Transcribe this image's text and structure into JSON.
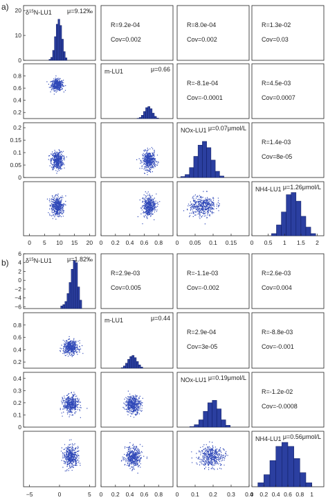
{
  "colors": {
    "hist_fill": "#2b3fa0",
    "hist_stroke": "#0d1a5e",
    "scatter": "#2f48b8",
    "frame": "#222222",
    "tick_text": "#222222"
  },
  "chart_data": [
    {
      "type": "scatter-matrix",
      "panel_label": "a)",
      "variables": [
        "δ15N-LU1",
        "m-LU1",
        "NOx-LU1",
        "NH4-LU1"
      ],
      "diagonal": [
        {
          "label_prefix": "δ",
          "label_sup": "15",
          "label_main": "N-LU1",
          "mu_text": "μ=9.12‰",
          "mean": 9.12,
          "sd": 1.1,
          "bins": [
            6.5,
            7.1,
            7.7,
            8.3,
            8.9,
            9.5,
            10.1,
            10.7,
            11.3,
            11.9,
            12.5
          ],
          "counts": [
            0.4,
            1.2,
            4.0,
            9.5,
            14.5,
            16.5,
            14.0,
            8.5,
            3.5,
            1.0
          ]
        },
        {
          "label_main": "m-LU1",
          "mu_text": "μ=0.66",
          "mean": 0.66,
          "sd": 0.05,
          "bins": [
            0.5,
            0.53,
            0.56,
            0.59,
            0.62,
            0.65,
            0.68,
            0.71,
            0.74,
            0.77,
            0.8
          ],
          "counts": [
            0.005,
            0.02,
            0.06,
            0.13,
            0.2,
            0.22,
            0.18,
            0.1,
            0.04,
            0.01
          ]
        },
        {
          "label_main": "NOx-LU1",
          "mu_text": "μ=0.07μmol/L",
          "mean": 0.07,
          "sd": 0.02,
          "bins": [
            0.01,
            0.022,
            0.034,
            0.046,
            0.058,
            0.07,
            0.082,
            0.094,
            0.106,
            0.118,
            0.13
          ],
          "counts": [
            0.004,
            0.012,
            0.04,
            0.085,
            0.13,
            0.145,
            0.12,
            0.07,
            0.025,
            0.006
          ]
        },
        {
          "label_main": "NH4-LU1",
          "mu_text": "μ=1.26μmol/L",
          "mean": 1.26,
          "sd": 0.25,
          "bins": [
            0.6,
            0.75,
            0.9,
            1.05,
            1.2,
            1.35,
            1.5,
            1.65,
            1.8,
            1.95
          ],
          "counts": [
            0.01,
            0.05,
            0.11,
            0.19,
            0.2,
            0.16,
            0.09,
            0.04,
            0.01
          ]
        }
      ],
      "upper": [
        {
          "row": 0,
          "col": 1,
          "r_text": "R=9.2e-04",
          "cov_text": "Cov=0.002"
        },
        {
          "row": 0,
          "col": 2,
          "r_text": "R=8.0e-04",
          "cov_text": "Cov=0.002"
        },
        {
          "row": 0,
          "col": 3,
          "r_text": "R=1.3e-02",
          "cov_text": "Cov=0.03"
        },
        {
          "row": 1,
          "col": 2,
          "r_text": "R=-8.1e-04",
          "cov_text": "Cov=-0.0001"
        },
        {
          "row": 1,
          "col": 3,
          "r_text": "R=4.5e-03",
          "cov_text": "Cov=0.0007"
        },
        {
          "row": 2,
          "col": 3,
          "r_text": "R=1.4e-03",
          "cov_text": "Cov=8e-05"
        }
      ],
      "x_ranges": [
        [
          -2,
          22
        ],
        [
          0,
          1
        ],
        [
          0,
          0.2
        ],
        [
          0,
          2.2
        ]
      ],
      "y_ranges": [
        [
          0,
          22
        ],
        [
          0.1,
          1
        ],
        [
          0,
          0.22
        ],
        [
          0,
          0.25
        ]
      ],
      "x_ticks": [
        [
          "0",
          "5",
          "10",
          "15",
          "20"
        ],
        [
          "0",
          "0.2",
          "0.4",
          "0.6",
          "0.8"
        ],
        [
          "0",
          "0.05",
          "0.1",
          "0.15"
        ],
        [
          "0",
          "0.5",
          "1",
          "1.5",
          "2"
        ]
      ],
      "y_ticks": [
        [
          "0",
          "10",
          "20"
        ],
        [
          "0.2",
          "0.4",
          "0.6",
          "0.8"
        ],
        [
          "0",
          "0.05",
          "0.1",
          "0.15",
          "0.2"
        ],
        []
      ],
      "y_tick_values": [
        [
          0,
          10,
          20
        ],
        [
          0.2,
          0.4,
          0.6,
          0.8
        ],
        [
          0,
          0.05,
          0.1,
          0.15,
          0.2
        ],
        []
      ],
      "x_tick_values": [
        [
          0,
          5,
          10,
          15,
          20
        ],
        [
          0,
          0.2,
          0.4,
          0.6,
          0.8
        ],
        [
          0,
          0.05,
          0.1,
          0.15
        ],
        [
          0,
          0.5,
          1,
          1.5,
          2
        ]
      ]
    },
    {
      "type": "scatter-matrix",
      "panel_label": "b)",
      "variables": [
        "δ15N-LU1",
        "m-LU1",
        "NOx-LU1",
        "NH4-LU1"
      ],
      "diagonal": [
        {
          "label_prefix": "δ",
          "label_sup": "15",
          "label_main": "N-LU1",
          "mu_text": "μ=1.82‰",
          "mean": 1.82,
          "sd": 0.7,
          "bins": [
            0.2,
            0.55,
            0.9,
            1.25,
            1.6,
            1.95,
            2.3,
            2.65,
            3.0,
            3.35,
            3.7
          ],
          "counts": [
            -5.8,
            -5.5,
            -4.8,
            -3.0,
            -0.5,
            2.5,
            4.5,
            4.0,
            -1.5,
            -4.5
          ]
        },
        {
          "label_main": "m-LU1",
          "mu_text": "μ=0.44",
          "mean": 0.44,
          "sd": 0.06,
          "bins": [
            0.28,
            0.31,
            0.34,
            0.37,
            0.4,
            0.43,
            0.46,
            0.49,
            0.52,
            0.55,
            0.58
          ],
          "counts": [
            0.01,
            0.04,
            0.09,
            0.16,
            0.21,
            0.23,
            0.19,
            0.12,
            0.06,
            0.02
          ]
        },
        {
          "label_main": "NOx-LU1",
          "mu_text": "μ=0.19μmol/L",
          "mean": 0.19,
          "sd": 0.04,
          "bins": [
            0.07,
            0.095,
            0.12,
            0.145,
            0.17,
            0.195,
            0.22,
            0.245,
            0.27,
            0.295
          ],
          "counts": [
            0.005,
            0.02,
            0.06,
            0.13,
            0.2,
            0.22,
            0.15,
            0.06,
            0.015
          ]
        },
        {
          "label_main": "NH4-LU1",
          "mu_text": "μ=0.56μmol/L",
          "mean": 0.56,
          "sd": 0.17,
          "bins": [
            0.1,
            0.2,
            0.3,
            0.4,
            0.5,
            0.6,
            0.7,
            0.8,
            0.9,
            1.0
          ],
          "counts": [
            0.02,
            0.06,
            0.13,
            0.2,
            0.22,
            0.2,
            0.14,
            0.07,
            0.02
          ]
        }
      ],
      "upper": [
        {
          "row": 0,
          "col": 1,
          "r_text": "R=2.9e-03",
          "cov_text": "Cov=0.005"
        },
        {
          "row": 0,
          "col": 2,
          "r_text": "R=-1.1e-03",
          "cov_text": "Cov=-0.002"
        },
        {
          "row": 0,
          "col": 3,
          "r_text": "R=2.6e-03",
          "cov_text": "Cov=0.004"
        },
        {
          "row": 1,
          "col": 2,
          "r_text": "R=2.9e-04",
          "cov_text": "Cov=3e-05"
        },
        {
          "row": 1,
          "col": 3,
          "r_text": "R=-8.8e-03",
          "cov_text": "Cov=-0.001"
        },
        {
          "row": 2,
          "col": 3,
          "r_text": "R=-1.2e-02",
          "cov_text": "Cov=-0.0008"
        }
      ],
      "x_ranges": [
        [
          -6,
          6
        ],
        [
          0,
          1
        ],
        [
          0,
          0.4
        ],
        [
          0,
          1.2
        ]
      ],
      "y_ranges": [
        [
          -6.4,
          6
        ],
        [
          0.1,
          1
        ],
        [
          0,
          0.45
        ],
        [
          0,
          0.25
        ]
      ],
      "x_ticks": [
        [
          "−5",
          "0",
          "5"
        ],
        [
          "0",
          "0.2",
          "0.4",
          "0.6",
          "0.8"
        ],
        [
          "0",
          "0.1",
          "0.2",
          "0.3",
          "0.4"
        ],
        [
          "0",
          "0.2",
          "0.4",
          "0.6",
          "0.8",
          "1"
        ]
      ],
      "y_ticks": [
        [
          "6",
          "4",
          "2",
          "0",
          "−2",
          "−4",
          "−6"
        ],
        [
          "0.2",
          "0.4",
          "0.6",
          "0.8"
        ],
        [
          "0",
          "0.1",
          "0.2",
          "0.3",
          "0.4"
        ],
        []
      ],
      "y_tick_values": [
        [
          6,
          4,
          2,
          0,
          -2,
          -4,
          -6
        ],
        [
          0.2,
          0.4,
          0.6,
          0.8
        ],
        [
          0,
          0.1,
          0.2,
          0.3,
          0.4
        ],
        []
      ],
      "x_tick_values": [
        [
          -5,
          0,
          5
        ],
        [
          0,
          0.2,
          0.4,
          0.6,
          0.8
        ],
        [
          0,
          0.1,
          0.2,
          0.3,
          0.4
        ],
        [
          0,
          0.2,
          0.4,
          0.6,
          0.8,
          1
        ]
      ]
    }
  ]
}
